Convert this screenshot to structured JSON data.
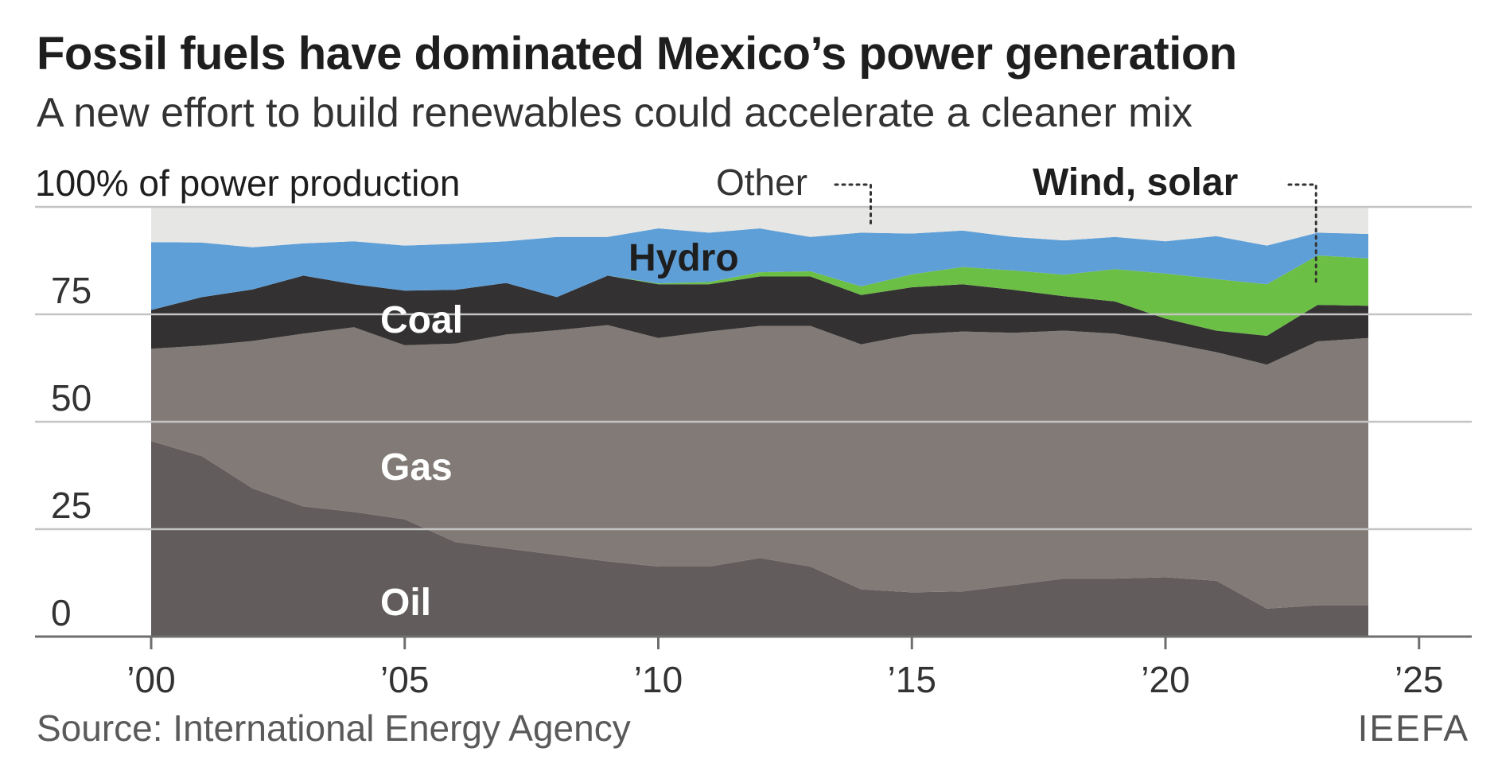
{
  "title": "Fossil fuels have dominated Mexico’s power generation",
  "subtitle": "A new effort to build renewables could accelerate a cleaner mix",
  "source": "Source: International Energy Agency",
  "brand": "IEEFA",
  "colors": {
    "oil": "#625d5c",
    "gas": "#817a76",
    "coal": "#333132",
    "wind_solar": "#6cbf45",
    "hydro": "#5f9fd7",
    "other": "#e6e6e4",
    "axis": "#6e6e6e",
    "grid": "#c4c4c4"
  },
  "chart_data": {
    "type": "area",
    "stacked": true,
    "y_axis_title": "100% of power production",
    "ylim": [
      0,
      100
    ],
    "yticks": [
      0,
      25,
      50,
      75
    ],
    "ytick_labels": [
      "0",
      "25",
      "50",
      "75"
    ],
    "xlim": [
      2000,
      2025
    ],
    "xticks": [
      2000,
      2005,
      2010,
      2015,
      2020,
      2025
    ],
    "xtick_labels": [
      "’00",
      "’05",
      "’10",
      "’15",
      "’20",
      "’25"
    ],
    "grid": true,
    "x": [
      2000,
      2001,
      2002,
      2003,
      2004,
      2005,
      2006,
      2007,
      2008,
      2009,
      2010,
      2011,
      2012,
      2013,
      2014,
      2015,
      2016,
      2017,
      2018,
      2019,
      2020,
      2021,
      2022,
      2023,
      2024
    ],
    "series": [
      {
        "name": "Oil",
        "key": "oil",
        "values": [
          45.5,
          42,
          34.5,
          30.3,
          29,
          27.3,
          22,
          20.5,
          19,
          17.5,
          16.3,
          16.3,
          18.3,
          16.3,
          11,
          10.3,
          10.5,
          12,
          13.5,
          13.5,
          13.8,
          13,
          6.5,
          7.3,
          7.3
        ]
      },
      {
        "name": "Gas",
        "key": "gas",
        "values": [
          21.5,
          25.7,
          34.3,
          40.2,
          43,
          40.5,
          46.2,
          49.8,
          52.3,
          55,
          53.2,
          54.7,
          54,
          56,
          57,
          60,
          60.5,
          58.7,
          57.7,
          57,
          54.7,
          53.2,
          56.8,
          61.4,
          62.2
        ]
      },
      {
        "name": "Coal",
        "key": "coal",
        "values": [
          9,
          11.3,
          12,
          13.5,
          10,
          12.7,
          12.5,
          12,
          7.7,
          11.5,
          12.5,
          11,
          11.5,
          11.5,
          11.5,
          11,
          11,
          10,
          8,
          7.5,
          5.5,
          5,
          6.7,
          8.5,
          7.5
        ]
      },
      {
        "name": "Wind, solar",
        "key": "wind_solar",
        "values": [
          0,
          0,
          0,
          0,
          0,
          0,
          0,
          0,
          0,
          0,
          0.2,
          0.5,
          1,
          1.2,
          2,
          3,
          4,
          4.5,
          5,
          7.5,
          10.5,
          12,
          12,
          11.5,
          11
        ]
      },
      {
        "name": "Hydro",
        "key": "hydro",
        "values": [
          15.8,
          12.7,
          9.8,
          7.5,
          10,
          10.5,
          10.7,
          9.7,
          14,
          9,
          12.8,
          11.5,
          10.2,
          8,
          12.5,
          9.5,
          8.5,
          7.8,
          8,
          7.5,
          7.5,
          10,
          9,
          5.3,
          5.7
        ]
      },
      {
        "name": "Other",
        "key": "other",
        "values": [
          8.2,
          8.3,
          9.4,
          8.5,
          8,
          9,
          8.6,
          8,
          7,
          7,
          5,
          6,
          5,
          7,
          6,
          6.2,
          5.5,
          7,
          7.8,
          7,
          8,
          6.8,
          9,
          6,
          6.3
        ]
      }
    ],
    "annotations": [
      {
        "label": "Hydro"
      },
      {
        "label": "Coal"
      },
      {
        "label": "Gas"
      },
      {
        "label": "Oil"
      },
      {
        "label": "Other",
        "target_year": 2014
      },
      {
        "label": "Wind, solar",
        "target_year": 2023
      }
    ]
  }
}
